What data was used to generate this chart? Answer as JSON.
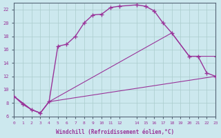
{
  "xlabel": "Windchill (Refroidissement éolien,°C)",
  "background_color": "#cce8ee",
  "grid_color": "#aacccc",
  "line_color": "#993399",
  "xlim": [
    0,
    23
  ],
  "ylim": [
    6,
    23
  ],
  "xticks": [
    0,
    1,
    2,
    3,
    4,
    5,
    6,
    7,
    8,
    9,
    10,
    11,
    12,
    14,
    15,
    16,
    17,
    18,
    19,
    20,
    21,
    22,
    23
  ],
  "yticks": [
    6,
    8,
    10,
    12,
    14,
    16,
    18,
    20,
    22
  ],
  "curve1_x": [
    0,
    1,
    2,
    3,
    4,
    5,
    6,
    7,
    8,
    9,
    10,
    11,
    12,
    14,
    15,
    16,
    17,
    18,
    20,
    21,
    22,
    23
  ],
  "curve1_y": [
    9.0,
    7.8,
    7.0,
    6.5,
    8.2,
    16.5,
    16.8,
    18.0,
    20.0,
    21.2,
    21.3,
    22.3,
    22.5,
    22.7,
    22.5,
    21.8,
    20.0,
    18.5,
    15.0,
    15.0,
    12.5,
    12.0
  ],
  "curve2_x": [
    0,
    2,
    3,
    4,
    18,
    20,
    21,
    23
  ],
  "curve2_y": [
    9.0,
    7.0,
    6.5,
    8.2,
    18.5,
    15.0,
    15.0,
    15.0
  ],
  "curve3_x": [
    0,
    2,
    3,
    4,
    23
  ],
  "curve3_y": [
    9.0,
    7.0,
    6.5,
    8.2,
    12.0
  ]
}
